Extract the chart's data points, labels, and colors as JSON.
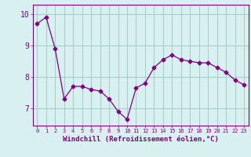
{
  "x": [
    0,
    1,
    2,
    3,
    4,
    5,
    6,
    7,
    8,
    9,
    10,
    11,
    12,
    13,
    14,
    15,
    16,
    17,
    18,
    19,
    20,
    21,
    22,
    23
  ],
  "y": [
    9.7,
    9.9,
    8.9,
    7.3,
    7.7,
    7.7,
    7.6,
    7.55,
    7.3,
    6.9,
    6.65,
    7.65,
    7.8,
    8.3,
    8.55,
    8.7,
    8.55,
    8.5,
    8.45,
    8.45,
    8.3,
    8.15,
    7.9,
    7.75
  ],
  "line_color": "#800080",
  "marker": "D",
  "marker_size": 2.5,
  "background_color": "#d8f0f0",
  "grid_color": "#aacece",
  "xlabel": "Windchill (Refroidissement éolien,°C)",
  "xlabel_color": "#800080",
  "tick_color": "#800080",
  "ylim_min": 6.45,
  "ylim_max": 10.3,
  "xlim_min": -0.5,
  "xlim_max": 23.5,
  "yticks": [
    7,
    8,
    9,
    10
  ],
  "xticks": [
    0,
    1,
    2,
    3,
    4,
    5,
    6,
    7,
    8,
    9,
    10,
    11,
    12,
    13,
    14,
    15,
    16,
    17,
    18,
    19,
    20,
    21,
    22,
    23
  ]
}
